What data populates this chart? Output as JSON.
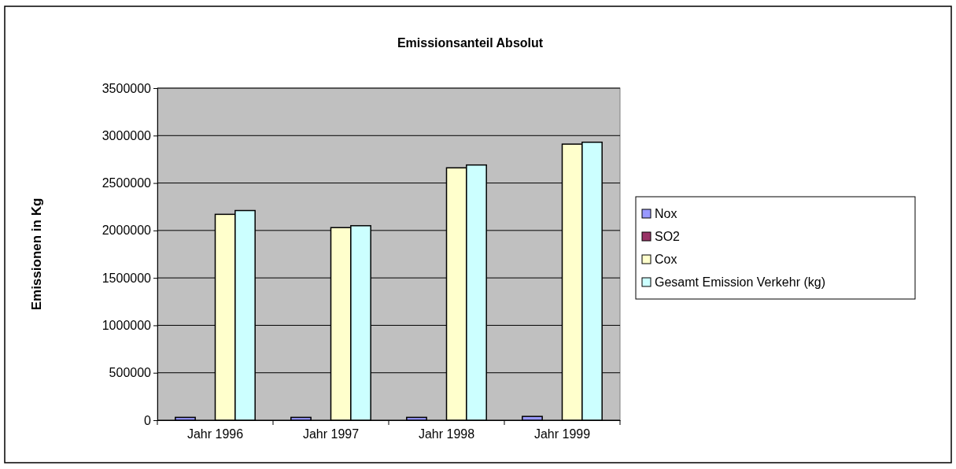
{
  "chart_data": {
    "type": "bar",
    "title": "Emissionsanteil Absolut",
    "ylabel": "Emissionen in Kg",
    "categories": [
      "Jahr 1996",
      "Jahr 1997",
      "Jahr 1998",
      "Jahr 1999"
    ],
    "series": [
      {
        "name": "Nox",
        "color": "#9999ff",
        "values": [
          30000,
          30000,
          30000,
          40000
        ]
      },
      {
        "name": "SO2",
        "color": "#993366",
        "values": [
          0,
          0,
          0,
          0
        ]
      },
      {
        "name": "Cox",
        "color": "#ffffcc",
        "values": [
          2170000,
          2030000,
          2660000,
          2910000
        ]
      },
      {
        "name": "Gesamt Emission Verkehr (kg)",
        "color": "#ccffff",
        "values": [
          2210000,
          2050000,
          2690000,
          2930000
        ]
      }
    ],
    "ylim": [
      0,
      3500000
    ],
    "yticks": [
      0,
      500000,
      1000000,
      1500000,
      2000000,
      2500000,
      3000000,
      3500000
    ],
    "grid": "y",
    "legend": "right"
  }
}
